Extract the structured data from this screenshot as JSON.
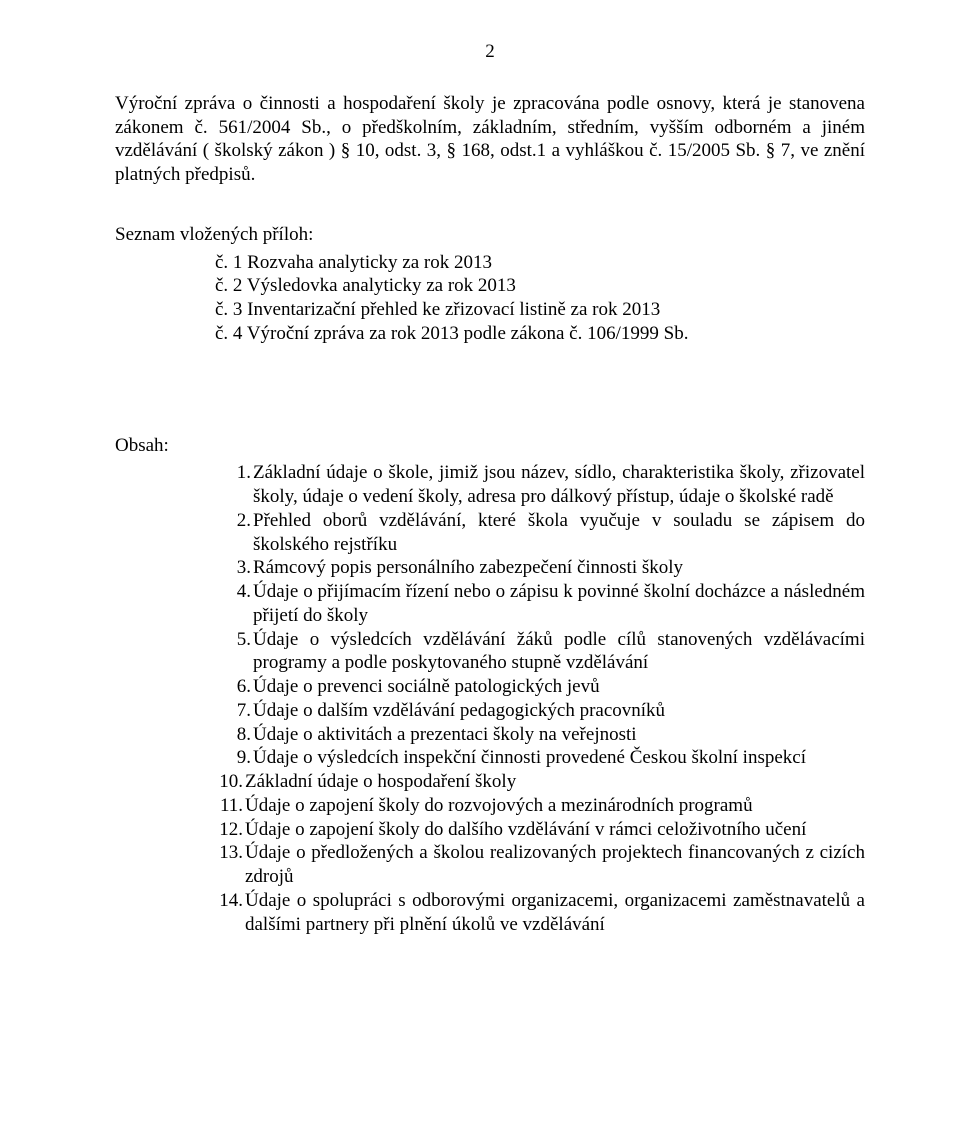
{
  "page_number": "2",
  "intro_paragraph": "Výroční zpráva o činnosti a hospodaření školy je zpracována podle osnovy, která je stanovena zákonem č. 561/2004 Sb., o předškolním, základním, středním, vyšším odborném a jiném vzdělávání ( školský zákon ) § 10, odst. 3, § 168, odst.1 a vyhláškou č. 15/2005 Sb. § 7, ve znění platných předpisů.",
  "attachments": {
    "heading": "Seznam vložených příloh:",
    "items": [
      "č. 1  Rozvaha analyticky za rok 2013",
      "č. 2  Výsledovka analyticky za rok 2013",
      "č. 3  Inventarizační přehled ke zřizovací listině za rok 2013",
      "č. 4  Výroční zpráva za rok 2013 podle zákona č. 106/1999 Sb."
    ]
  },
  "contents": {
    "heading": "Obsah:",
    "items": [
      {
        "n": "1.",
        "text": "Základní údaje o škole, jimiž jsou název, sídlo, charakteristika školy, zřizovatel školy, údaje o vedení školy, adresa pro dálkový přístup, údaje o školské radě"
      },
      {
        "n": "2.",
        "text": "Přehled oborů vzdělávání, které škola vyučuje v souladu se zápisem do školského rejstříku"
      },
      {
        "n": "3.",
        "text": "Rámcový popis personálního zabezpečení činnosti školy"
      },
      {
        "n": "4.",
        "text": "Údaje o přijímacím řízení nebo o zápisu k povinné školní docházce a následném přijetí do školy"
      },
      {
        "n": "5.",
        "text": "Údaje o výsledcích vzdělávání žáků podle cílů stanovených vzdělávacími programy a podle poskytovaného stupně vzdělávání"
      },
      {
        "n": "6.",
        "text": "Údaje o prevenci sociálně patologických jevů"
      },
      {
        "n": "7.",
        "text": "Údaje o dalším vzdělávání pedagogických pracovníků"
      },
      {
        "n": "8.",
        "text": "Údaje o aktivitách a prezentaci školy na veřejnosti"
      },
      {
        "n": "9.",
        "text": "Údaje o výsledcích inspekční činnosti provedené Českou školní inspekcí"
      },
      {
        "n": "10.",
        "text": "Základní údaje o hospodaření školy"
      },
      {
        "n": "11.",
        "text": "Údaje o zapojení školy do rozvojových a mezinárodních programů"
      },
      {
        "n": "12.",
        "text": "Údaje o zapojení školy do dalšího vzdělávání v rámci celoživotního učení"
      },
      {
        "n": "13.",
        "text": "Údaje o předložených a školou realizovaných projektech financovaných z cizích zdrojů"
      },
      {
        "n": "14.",
        "text": "Údaje o spolupráci s odborovými organizacemi, organizacemi zaměstnavatelů a dalšími partnery při plnění úkolů ve vzdělávání"
      }
    ]
  },
  "colors": {
    "background": "#ffffff",
    "text": "#000000"
  },
  "typography": {
    "font_family": "Times New Roman",
    "body_fontsize_pt": 14
  }
}
